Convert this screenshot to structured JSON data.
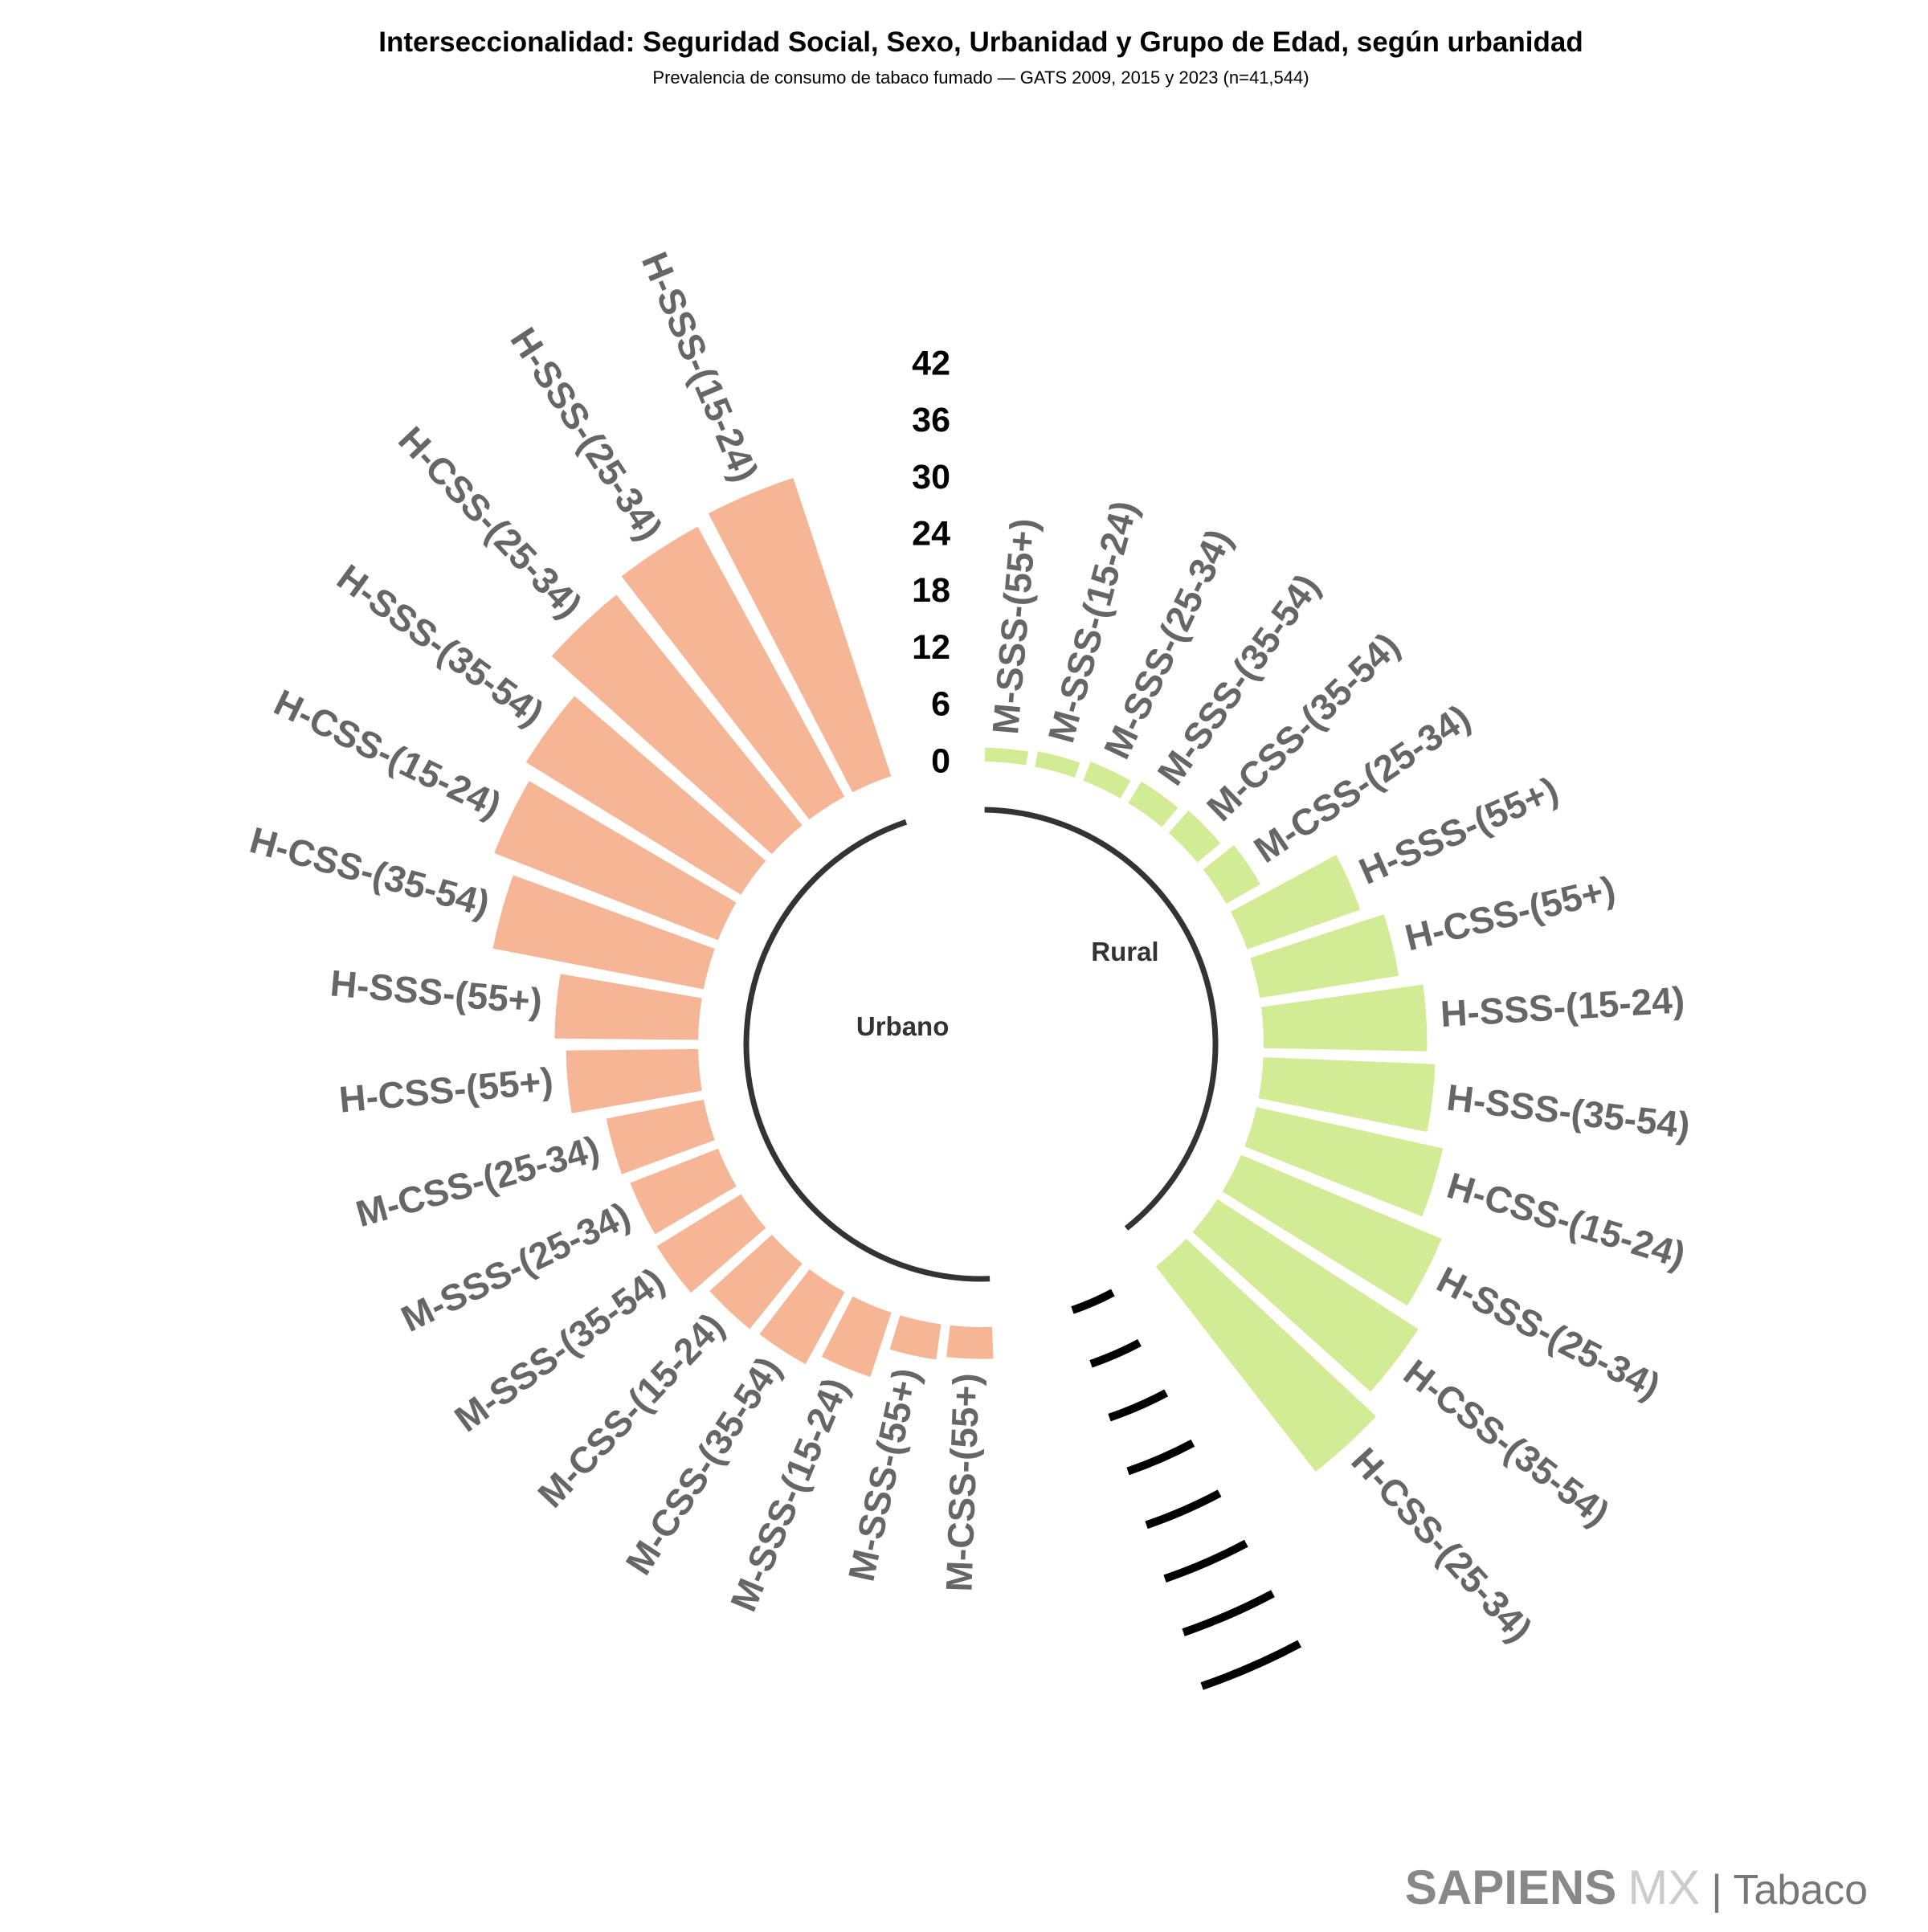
{
  "chart_data": {
    "type": "radial_bar",
    "title": "Interseccionalidad: Seguridad Social, Sexo, Urbanidad y Grupo de Edad, según urbanidad",
    "subtitle": "Prevalencia de consumo de tabaco fumado — GATS 2009, 2015 y 2023 (n=41,544)",
    "ylim": [
      0,
      42
    ],
    "yticks": [
      0,
      6,
      12,
      18,
      24,
      30,
      36,
      42
    ],
    "series": [
      {
        "name": "Rural",
        "color": "#d2ec95",
        "categories": [
          "M-SSS-(55+)",
          "M-SSS-(15-24)",
          "M-SSS-(25-34)",
          "M-SSS-(35-54)",
          "M-CSS-(35-54)",
          "M-CSS-(25-34)",
          "H-SSS-(55+)",
          "H-CSS-(55+)",
          "H-SSS-(15-24)",
          "H-SSS-(35-54)",
          "H-CSS-(15-24)",
          "H-SSS-(25-34)",
          "H-CSS-(35-54)",
          "H-CSS-(25-34)"
        ],
        "values": [
          1.8,
          2.0,
          2.5,
          3.0,
          3.5,
          4.5,
          13.0,
          15.2,
          17.6,
          18.5,
          20.5,
          23.3,
          25.6,
          27.8
        ]
      },
      {
        "name": "Urbano",
        "color": "#f6b594",
        "categories": [
          "M-CSS-(55+)",
          "M-SSS-(55+)",
          "M-SSS-(15-24)",
          "M-CSS-(35-54)",
          "M-CSS-(15-24)",
          "M-SSS-(35-54)",
          "M-SSS-(25-34)",
          "M-CSS-(25-34)",
          "H-CSS-(55+)",
          "H-SSS-(55+)",
          "H-CSS-(35-54)",
          "H-CSS-(15-24)",
          "H-SSS-(35-54)",
          "H-CSS-(25-34)",
          "H-SSS-(25-34)",
          "H-SSS-(15-24)"
        ],
        "values": [
          3.7,
          4.1,
          7.5,
          9.0,
          9.2,
          10.8,
          10.3,
          10.8,
          14.3,
          15.5,
          23.0,
          25.7,
          27.0,
          31.6,
          32.8,
          33.5
        ]
      }
    ]
  },
  "logo": {
    "name": "SAPIENS",
    "suffix": "MX",
    "section": "| Tabaco"
  }
}
